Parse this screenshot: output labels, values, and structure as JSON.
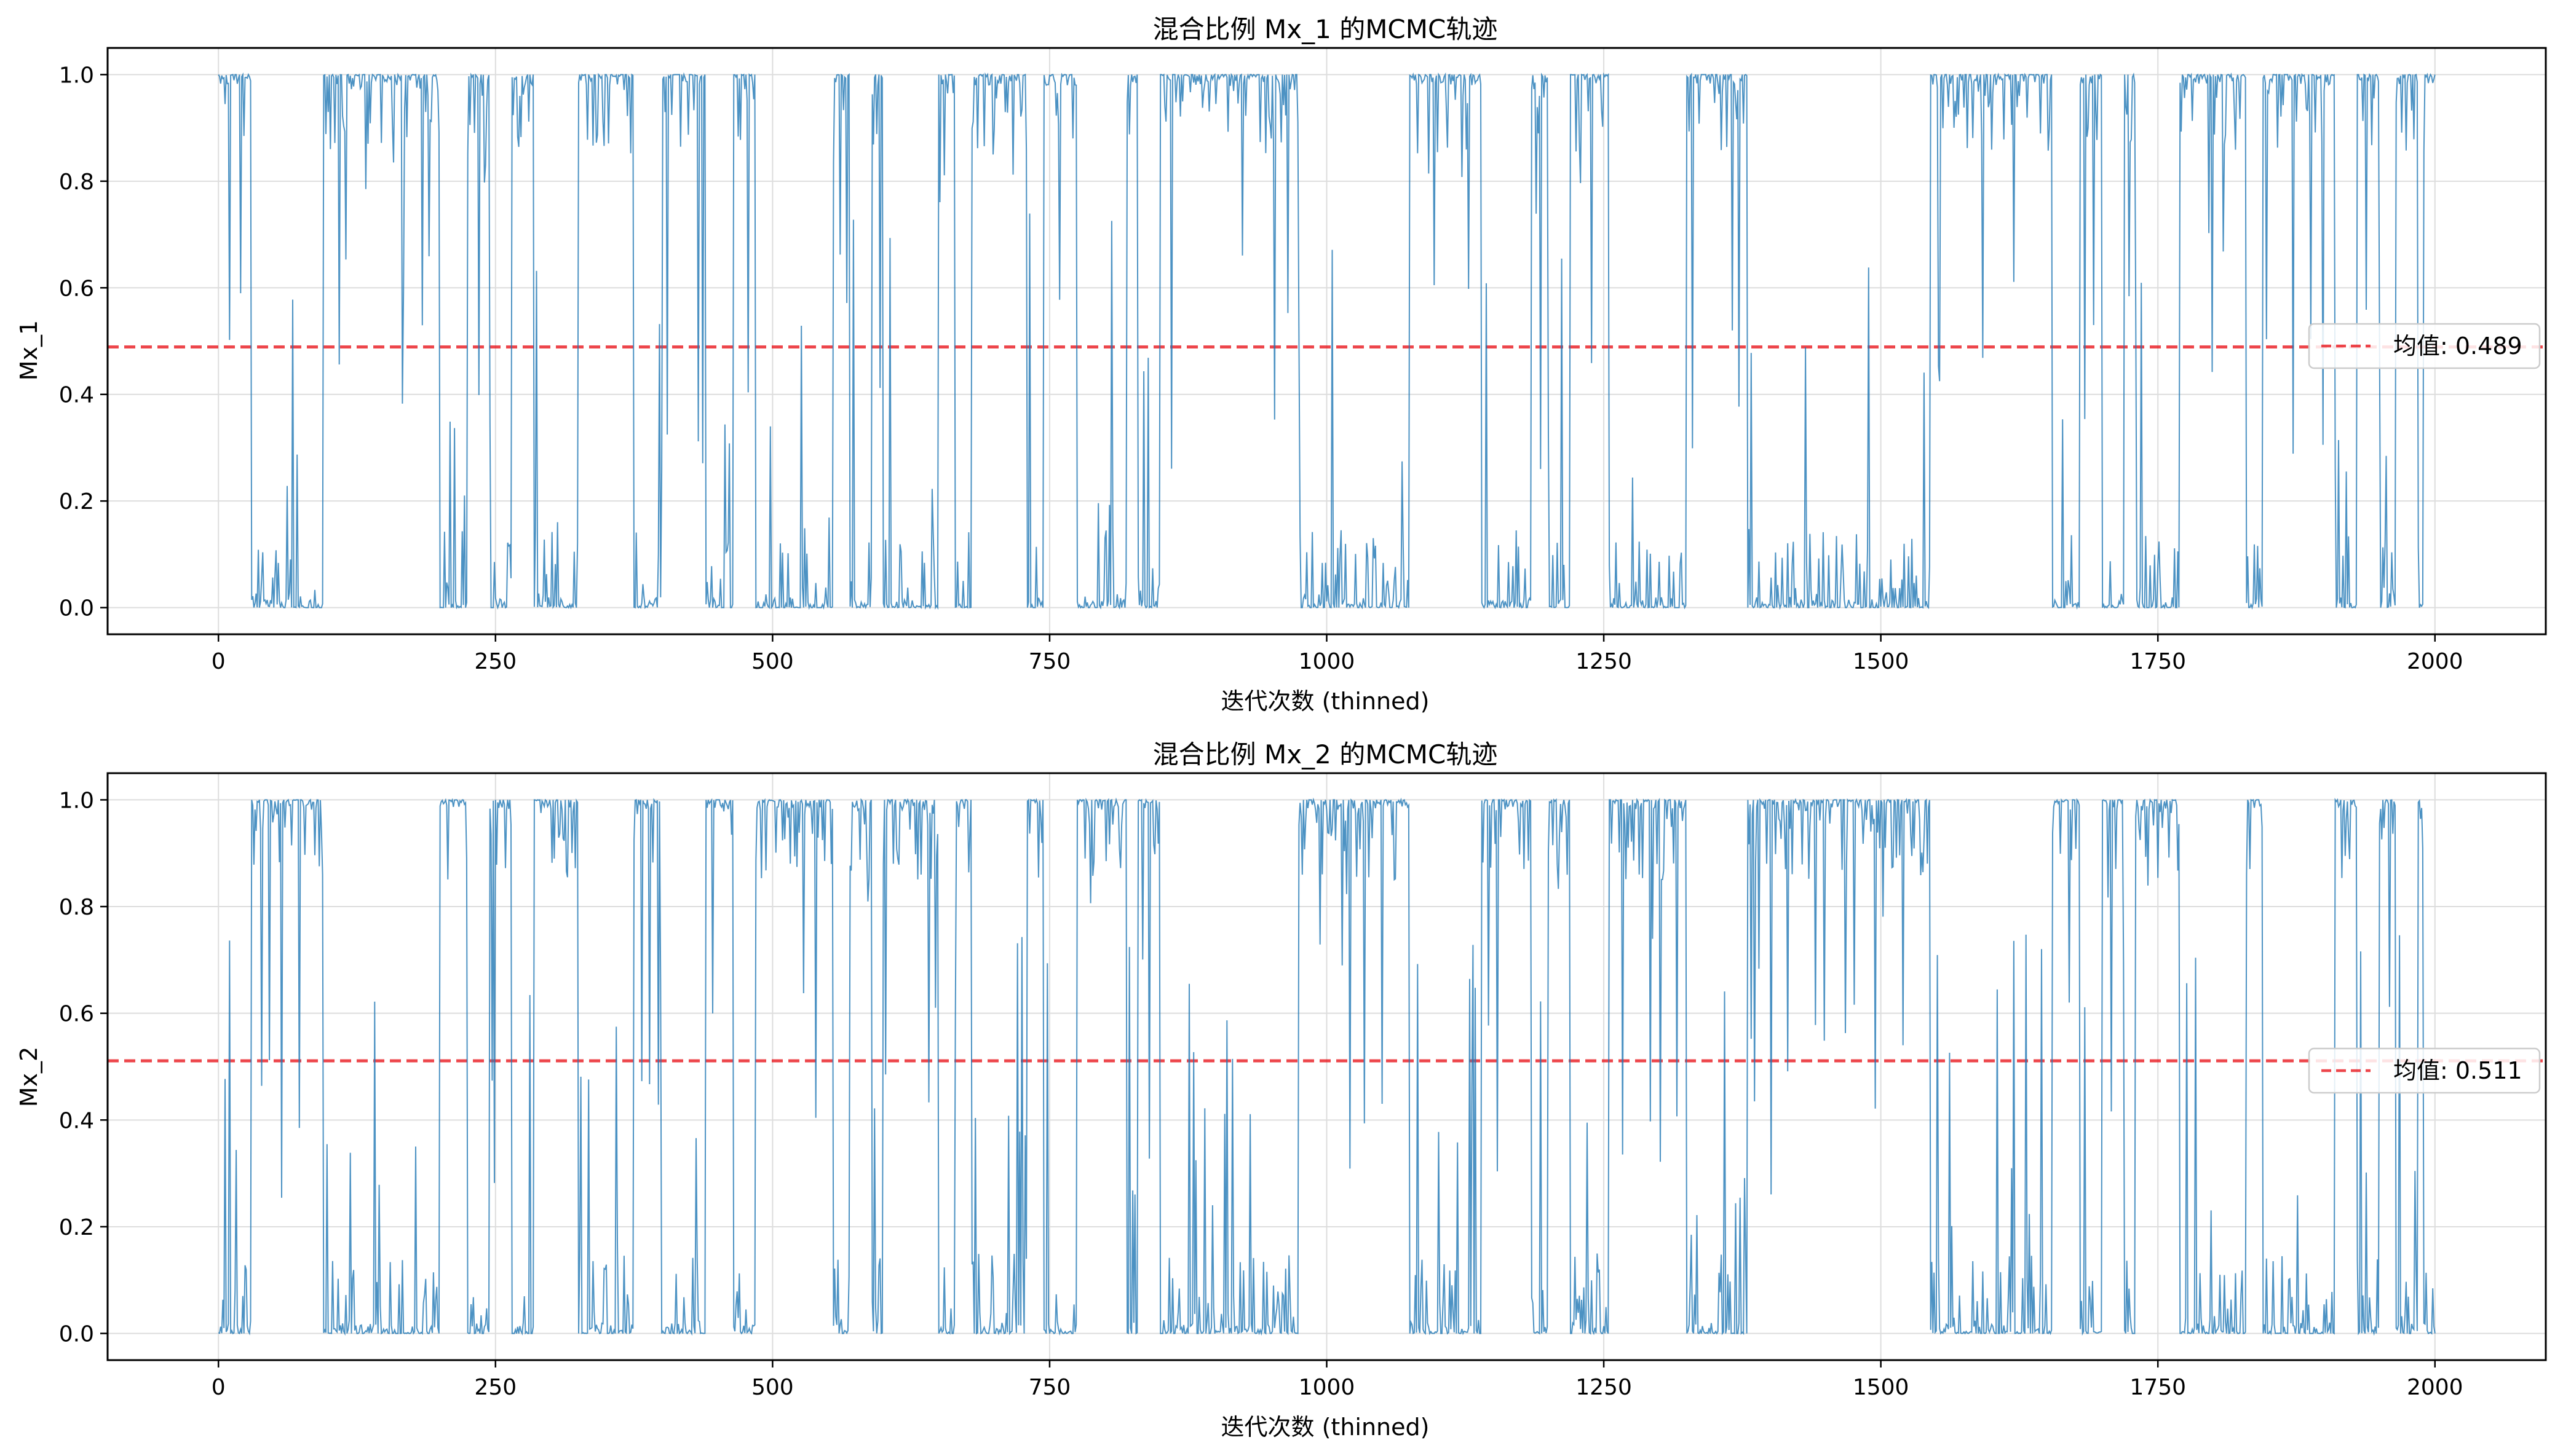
{
  "colors": {
    "trace": "#1f77b4",
    "mean_line": "#e8181e",
    "grid": "#dddddd",
    "axes": "#000000",
    "legend_border": "#cccccc"
  },
  "chart_data": [
    {
      "type": "line",
      "title": "混合比例 Mx_1 的MCMC轨迹",
      "xlabel": "迭代次数 (thinned)",
      "ylabel": "Mx_1",
      "xlim": [
        -100,
        2100
      ],
      "ylim": [
        -0.05,
        1.05
      ],
      "x_ticks": [
        0,
        250,
        500,
        750,
        1000,
        1250,
        1500,
        1750,
        2000
      ],
      "x_tick_labels": [
        "0",
        "250",
        "500",
        "750",
        "1000",
        "1250",
        "1500",
        "1750",
        "2000"
      ],
      "y_ticks": [
        0.0,
        0.2,
        0.4,
        0.6,
        0.8,
        1.0
      ],
      "y_tick_labels": [
        "0.0",
        "0.2",
        "0.4",
        "0.6",
        "0.8",
        "1.0"
      ],
      "grid": true,
      "legend_position": "center-right",
      "mean": 0.489,
      "legend_label": "均值: 0.489",
      "series": [
        {
          "x_start": 0,
          "x_end": 2000,
          "regimes": [
            [
              0,
              1
            ],
            [
              30,
              0
            ],
            [
              95,
              1
            ],
            [
              200,
              0
            ],
            [
              225,
              1
            ],
            [
              245,
              0
            ],
            [
              265,
              1
            ],
            [
              285,
              0
            ],
            [
              325,
              1
            ],
            [
              375,
              0
            ],
            [
              400,
              1
            ],
            [
              440,
              0
            ],
            [
              465,
              1
            ],
            [
              485,
              0
            ],
            [
              555,
              1
            ],
            [
              570,
              0
            ],
            [
              590,
              1
            ],
            [
              600,
              0
            ],
            [
              650,
              1
            ],
            [
              665,
              0
            ],
            [
              680,
              1
            ],
            [
              730,
              0
            ],
            [
              745,
              1
            ],
            [
              775,
              0
            ],
            [
              820,
              1
            ],
            [
              830,
              0
            ],
            [
              850,
              1
            ],
            [
              975,
              0
            ],
            [
              1075,
              1
            ],
            [
              1140,
              0
            ],
            [
              1185,
              1
            ],
            [
              1200,
              0
            ],
            [
              1220,
              1
            ],
            [
              1255,
              0
            ],
            [
              1325,
              1
            ],
            [
              1380,
              0
            ],
            [
              1545,
              1
            ],
            [
              1655,
              0
            ],
            [
              1680,
              1
            ],
            [
              1700,
              0
            ],
            [
              1720,
              1
            ],
            [
              1730,
              0
            ],
            [
              1770,
              1
            ],
            [
              1830,
              0
            ],
            [
              1845,
              1
            ],
            [
              1910,
              0
            ],
            [
              1930,
              1
            ],
            [
              1950,
              0
            ],
            [
              1965,
              1
            ],
            [
              1985,
              0
            ],
            [
              1990,
              1
            ]
          ]
        }
      ]
    },
    {
      "type": "line",
      "title": "混合比例 Mx_2 的MCMC轨迹",
      "xlabel": "迭代次数 (thinned)",
      "ylabel": "Mx_2",
      "xlim": [
        -100,
        2100
      ],
      "ylim": [
        -0.05,
        1.05
      ],
      "x_ticks": [
        0,
        250,
        500,
        750,
        1000,
        1250,
        1500,
        1750,
        2000
      ],
      "x_tick_labels": [
        "0",
        "250",
        "500",
        "750",
        "1000",
        "1250",
        "1500",
        "1750",
        "2000"
      ],
      "y_ticks": [
        0.0,
        0.2,
        0.4,
        0.6,
        0.8,
        1.0
      ],
      "y_tick_labels": [
        "0.0",
        "0.2",
        "0.4",
        "0.6",
        "0.8",
        "1.0"
      ],
      "grid": true,
      "legend_position": "center-right",
      "mean": 0.511,
      "legend_label": "均值: 0.511",
      "series": [
        {
          "x_start": 0,
          "x_end": 2000,
          "regimes": [
            [
              0,
              0
            ],
            [
              30,
              1
            ],
            [
              95,
              0
            ],
            [
              200,
              1
            ],
            [
              225,
              0
            ],
            [
              245,
              1
            ],
            [
              265,
              0
            ],
            [
              285,
              1
            ],
            [
              325,
              0
            ],
            [
              375,
              1
            ],
            [
              400,
              0
            ],
            [
              440,
              1
            ],
            [
              465,
              0
            ],
            [
              485,
              1
            ],
            [
              555,
              0
            ],
            [
              570,
              1
            ],
            [
              590,
              0
            ],
            [
              600,
              1
            ],
            [
              650,
              0
            ],
            [
              665,
              1
            ],
            [
              680,
              0
            ],
            [
              730,
              1
            ],
            [
              745,
              0
            ],
            [
              775,
              1
            ],
            [
              820,
              0
            ],
            [
              830,
              1
            ],
            [
              850,
              0
            ],
            [
              975,
              1
            ],
            [
              1075,
              0
            ],
            [
              1140,
              1
            ],
            [
              1185,
              0
            ],
            [
              1200,
              1
            ],
            [
              1220,
              0
            ],
            [
              1255,
              1
            ],
            [
              1325,
              0
            ],
            [
              1380,
              1
            ],
            [
              1545,
              0
            ],
            [
              1655,
              1
            ],
            [
              1680,
              0
            ],
            [
              1700,
              1
            ],
            [
              1720,
              0
            ],
            [
              1730,
              1
            ],
            [
              1770,
              0
            ],
            [
              1830,
              1
            ],
            [
              1845,
              0
            ],
            [
              1910,
              1
            ],
            [
              1930,
              0
            ],
            [
              1950,
              1
            ],
            [
              1965,
              0
            ],
            [
              1985,
              1
            ],
            [
              1990,
              0
            ]
          ]
        }
      ]
    }
  ]
}
